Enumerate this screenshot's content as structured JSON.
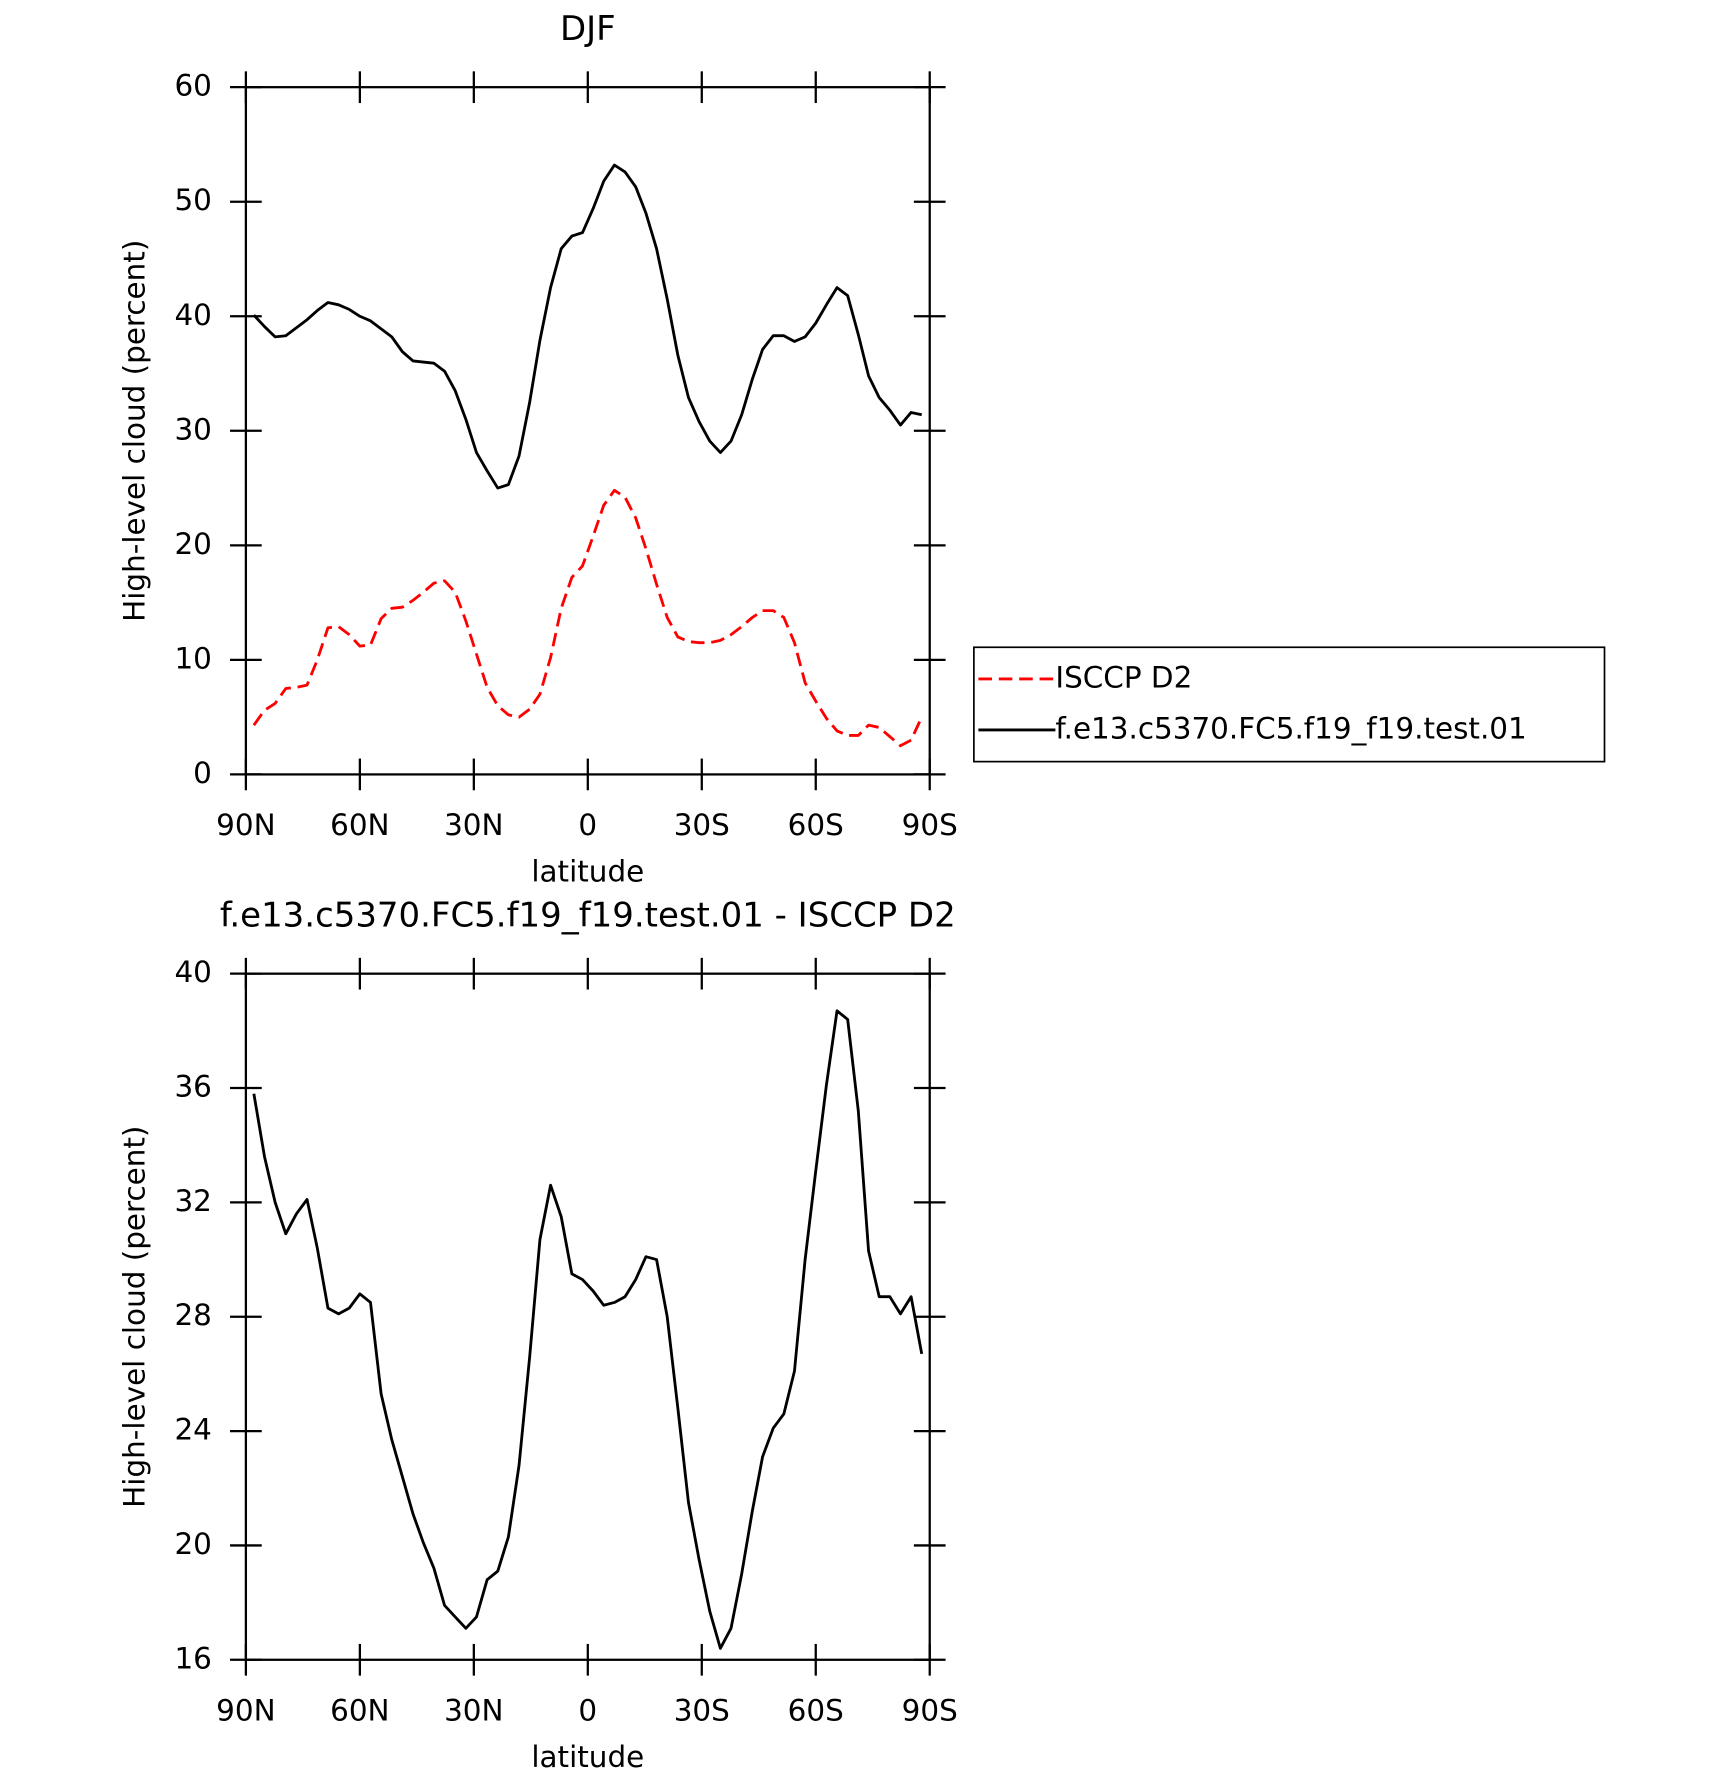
{
  "chart_data": [
    {
      "type": "line",
      "title": "DJF",
      "xlabel": "latitude",
      "ylabel": "High-level cloud (percent)",
      "x": [
        87.9,
        85.1,
        82.3,
        79.5,
        76.7,
        73.9,
        71.2,
        68.4,
        65.6,
        62.8,
        60.0,
        57.2,
        54.4,
        51.6,
        48.8,
        46.0,
        43.3,
        40.5,
        37.7,
        34.9,
        32.1,
        29.3,
        26.5,
        23.7,
        20.9,
        18.1,
        15.3,
        12.6,
        9.8,
        7.0,
        4.2,
        1.4,
        -1.4,
        -4.2,
        -7.0,
        -9.8,
        -12.6,
        -15.3,
        -18.1,
        -20.9,
        -23.7,
        -26.5,
        -29.3,
        -32.1,
        -34.9,
        -37.7,
        -40.5,
        -43.3,
        -46.0,
        -48.8,
        -51.6,
        -54.4,
        -57.2,
        -60.0,
        -62.8,
        -65.6,
        -68.4,
        -71.2,
        -73.9,
        -76.7,
        -79.5,
        -82.3,
        -85.1,
        -87.9
      ],
      "xlim": [
        90,
        -90
      ],
      "xticks": [
        {
          "value": 90,
          "label": "90N"
        },
        {
          "value": 60,
          "label": "60N"
        },
        {
          "value": 30,
          "label": "30N"
        },
        0,
        {
          "value": -30,
          "label": "30S"
        },
        {
          "value": -60,
          "label": "60S"
        },
        {
          "value": -90,
          "label": "90S"
        }
      ],
      "ylim": [
        0,
        60
      ],
      "yticks": [
        0,
        10,
        20,
        30,
        40,
        50,
        60
      ],
      "legend": "right",
      "series": [
        {
          "name": "ISCCP D2",
          "color": "#ff0000",
          "style": "dashed",
          "values": [
            4.3,
            5.6,
            6.2,
            7.5,
            7.6,
            7.8,
            10.0,
            12.8,
            12.9,
            12.2,
            11.2,
            11.3,
            13.6,
            14.5,
            14.6,
            15.2,
            15.9,
            16.7,
            16.9,
            15.9,
            13.4,
            10.5,
            7.6,
            6.0,
            5.2,
            5.0,
            5.7,
            7.0,
            10.2,
            14.5,
            17.2,
            18.2,
            20.8,
            23.5,
            24.8,
            24.2,
            22.4,
            19.7,
            16.6,
            13.7,
            12.0,
            11.6,
            11.5,
            11.5,
            11.7,
            12.2,
            12.9,
            13.7,
            14.3,
            14.3,
            13.7,
            11.5,
            8.0,
            6.4,
            4.9,
            3.8,
            3.4,
            3.4,
            4.3,
            4.1,
            3.3,
            2.5,
            3.0,
            5.0
          ]
        },
        {
          "name": "f.e13.c5370.FC5.f19_f19.test.01",
          "color": "#000000",
          "style": "solid",
          "values": [
            40.1,
            39.1,
            38.2,
            38.3,
            39.0,
            39.7,
            40.5,
            41.2,
            41.0,
            40.6,
            40.0,
            39.6,
            38.9,
            38.2,
            36.9,
            36.1,
            36.0,
            35.9,
            35.2,
            33.5,
            31.0,
            28.1,
            26.5,
            25.0,
            25.3,
            27.8,
            32.5,
            37.9,
            42.5,
            45.9,
            47.0,
            47.3,
            49.4,
            51.8,
            53.2,
            52.6,
            51.3,
            49.0,
            45.9,
            41.5,
            36.6,
            32.9,
            30.8,
            29.1,
            28.1,
            29.1,
            31.4,
            34.5,
            37.1,
            38.3,
            38.3,
            37.8,
            38.2,
            39.4,
            41.0,
            42.5,
            41.8,
            38.4,
            34.8,
            32.9,
            31.8,
            30.5,
            31.6,
            31.4
          ]
        }
      ]
    },
    {
      "type": "line",
      "title": "f.e13.c5370.FC5.f19_f19.test.01 - ISCCP D2",
      "xlabel": "latitude",
      "ylabel": "High-level cloud (percent)",
      "x": [
        87.9,
        85.1,
        82.3,
        79.5,
        76.7,
        73.9,
        71.2,
        68.4,
        65.6,
        62.8,
        60.0,
        57.2,
        54.4,
        51.6,
        48.8,
        46.0,
        43.3,
        40.5,
        37.7,
        34.9,
        32.1,
        29.3,
        26.5,
        23.7,
        20.9,
        18.1,
        15.3,
        12.6,
        9.8,
        7.0,
        4.2,
        1.4,
        -1.4,
        -4.2,
        -7.0,
        -9.8,
        -12.6,
        -15.3,
        -18.1,
        -20.9,
        -23.7,
        -26.5,
        -29.3,
        -32.1,
        -34.9,
        -37.7,
        -40.5,
        -43.3,
        -46.0,
        -48.8,
        -51.6,
        -54.4,
        -57.2,
        -60.0,
        -62.8,
        -65.6,
        -68.4,
        -71.2,
        -73.9,
        -76.7,
        -79.5,
        -82.3,
        -85.1,
        -87.9
      ],
      "xlim": [
        90,
        -90
      ],
      "xticks": [
        {
          "value": 90,
          "label": "90N"
        },
        {
          "value": 60,
          "label": "60N"
        },
        {
          "value": 30,
          "label": "30N"
        },
        0,
        {
          "value": -30,
          "label": "30S"
        },
        {
          "value": -60,
          "label": "60S"
        },
        {
          "value": -90,
          "label": "90S"
        }
      ],
      "ylim": [
        16,
        40
      ],
      "yticks": [
        16,
        20,
        24,
        28,
        32,
        36,
        40
      ],
      "series": [
        {
          "color": "#000000",
          "style": "solid",
          "values": [
            35.8,
            33.6,
            32.0,
            30.9,
            31.6,
            32.1,
            30.4,
            28.3,
            28.1,
            28.3,
            28.8,
            28.5,
            25.3,
            23.7,
            22.4,
            21.1,
            20.1,
            19.2,
            17.9,
            17.5,
            17.1,
            17.5,
            18.8,
            19.1,
            20.3,
            22.8,
            26.6,
            30.7,
            32.6,
            31.5,
            29.5,
            29.3,
            28.9,
            28.4,
            28.5,
            28.7,
            29.3,
            30.1,
            30.0,
            28.0,
            24.8,
            21.5,
            19.5,
            17.7,
            16.4,
            17.1,
            19.0,
            21.2,
            23.1,
            24.1,
            24.6,
            26.1,
            30.0,
            33.1,
            36.1,
            38.7,
            38.4,
            35.2,
            30.3,
            28.7,
            28.7,
            28.1,
            28.7,
            26.7
          ]
        }
      ]
    }
  ]
}
